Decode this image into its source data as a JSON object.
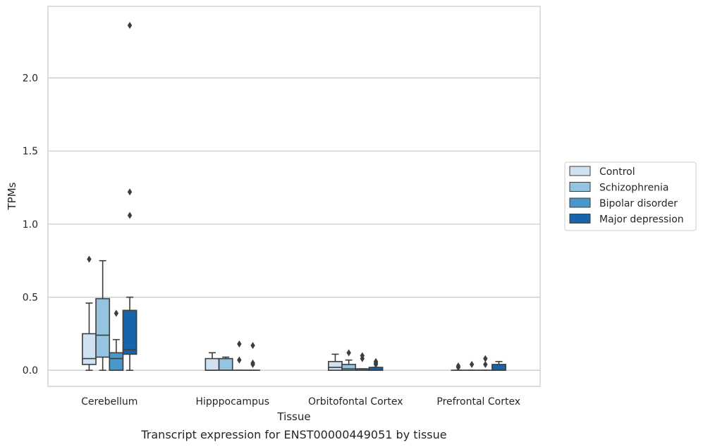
{
  "caption": "Transcript expression for ENST00000449051 by tissue",
  "chart_data": {
    "type": "boxplot",
    "xlabel": "Tissue",
    "ylabel": "TPMs",
    "ylim": [
      -0.11,
      2.49
    ],
    "yticks": [
      0.0,
      0.5,
      1.0,
      1.5,
      2.0
    ],
    "ytick_labels": [
      "0.0",
      "0.5",
      "1.0",
      "1.5",
      "2.0"
    ],
    "grid": "horizontal",
    "legend_position": "right",
    "categories": [
      "Cerebellum",
      "Hipppocampus",
      "Orbitofontal Cortex",
      "Prefrontal Cortex"
    ],
    "series": [
      {
        "name": "Control",
        "color": "#d0e1f2",
        "boxes": [
          {
            "q1": 0.04,
            "median": 0.08,
            "q3": 0.25,
            "whislo": 0.0,
            "whishi": 0.46,
            "fliers": [
              0.76
            ]
          },
          {
            "q1": 0.0,
            "median": 0.0,
            "q3": 0.08,
            "whislo": 0.0,
            "whishi": 0.12,
            "fliers": []
          },
          {
            "q1": 0.0,
            "median": 0.02,
            "q3": 0.06,
            "whislo": 0.0,
            "whishi": 0.11,
            "fliers": []
          },
          {
            "q1": 0.0,
            "median": 0.0,
            "q3": 0.0,
            "whislo": 0.0,
            "whishi": 0.0,
            "fliers": [
              0.03,
              0.02
            ]
          }
        ]
      },
      {
        "name": "Schizophrenia",
        "color": "#94c4df",
        "boxes": [
          {
            "q1": 0.09,
            "median": 0.24,
            "q3": 0.49,
            "whislo": 0.0,
            "whishi": 0.75,
            "fliers": []
          },
          {
            "q1": 0.0,
            "median": 0.0,
            "q3": 0.08,
            "whislo": 0.0,
            "whishi": 0.09,
            "fliers": []
          },
          {
            "q1": 0.0,
            "median": 0.01,
            "q3": 0.04,
            "whislo": 0.0,
            "whishi": 0.07,
            "fliers": [
              0.12
            ]
          },
          {
            "q1": 0.0,
            "median": 0.0,
            "q3": 0.0,
            "whislo": 0.0,
            "whishi": 0.0,
            "fliers": [
              0.04
            ]
          }
        ]
      },
      {
        "name": "Bipolar disorder",
        "color": "#4a98c9",
        "boxes": [
          {
            "q1": 0.0,
            "median": 0.08,
            "q3": 0.12,
            "whislo": 0.0,
            "whishi": 0.21,
            "fliers": [
              0.39
            ]
          },
          {
            "q1": 0.0,
            "median": 0.0,
            "q3": 0.0,
            "whislo": 0.0,
            "whishi": 0.0,
            "fliers": [
              0.18,
              0.07
            ]
          },
          {
            "q1": 0.0,
            "median": 0.0,
            "q3": 0.01,
            "whislo": 0.0,
            "whishi": 0.01,
            "fliers": [
              0.1,
              0.08
            ]
          },
          {
            "q1": 0.0,
            "median": 0.0,
            "q3": 0.0,
            "whislo": 0.0,
            "whishi": 0.0,
            "fliers": [
              0.08,
              0.04
            ]
          }
        ]
      },
      {
        "name": "Major depression",
        "color": "#1764ab",
        "boxes": [
          {
            "q1": 0.11,
            "median": 0.14,
            "q3": 0.41,
            "whislo": 0.0,
            "whishi": 0.5,
            "fliers": [
              2.36,
              1.22,
              1.06
            ]
          },
          {
            "q1": 0.0,
            "median": 0.0,
            "q3": 0.0,
            "whislo": 0.0,
            "whishi": 0.0,
            "fliers": [
              0.17,
              0.05,
              0.04
            ]
          },
          {
            "q1": 0.0,
            "median": 0.0,
            "q3": 0.02,
            "whislo": 0.0,
            "whishi": 0.02,
            "fliers": [
              0.06,
              0.05,
              0.04
            ]
          },
          {
            "q1": 0.0,
            "median": 0.0,
            "q3": 0.04,
            "whislo": 0.0,
            "whishi": 0.06,
            "fliers": []
          }
        ]
      }
    ]
  }
}
